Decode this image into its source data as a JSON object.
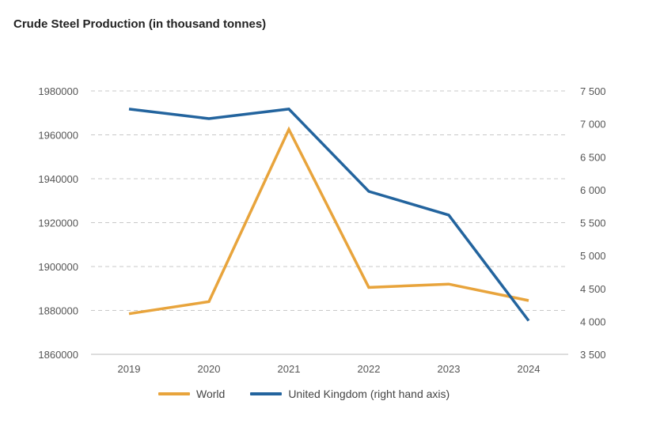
{
  "chart_data": {
    "type": "line",
    "title": "Crude Steel Production (in thousand tonnes)",
    "categories": [
      "2019",
      "2020",
      "2021",
      "2022",
      "2023",
      "2024"
    ],
    "y_left": {
      "ylim": [
        1860000,
        1980000
      ],
      "ticks": [
        1860000,
        1880000,
        1900000,
        1920000,
        1940000,
        1960000,
        1980000
      ],
      "tick_labels": [
        "1860000",
        "1880000",
        "1900000",
        "1920000",
        "1940000",
        "1960000",
        "1980000"
      ]
    },
    "y_right": {
      "ylim": [
        3500,
        7500
      ],
      "ticks": [
        3500,
        4000,
        4500,
        5000,
        5500,
        6000,
        6500,
        7000,
        7500
      ],
      "tick_labels": [
        "3 500",
        "4 000",
        "4 500",
        "5 000",
        "5 500",
        "6 000",
        "6 500",
        "7 000",
        "7 500"
      ]
    },
    "grid": true,
    "legend_position": "bottom",
    "series": [
      {
        "name": "World",
        "axis": "left",
        "color": "#E8A43C",
        "values": [
          1878500,
          1884000,
          1962500,
          1890500,
          1892000,
          1884500
        ]
      },
      {
        "name": "United Kingdom (right hand axis)",
        "axis": "right",
        "color": "#23649E",
        "values": [
          7225,
          7080,
          7225,
          5975,
          5615,
          4010
        ]
      }
    ]
  }
}
